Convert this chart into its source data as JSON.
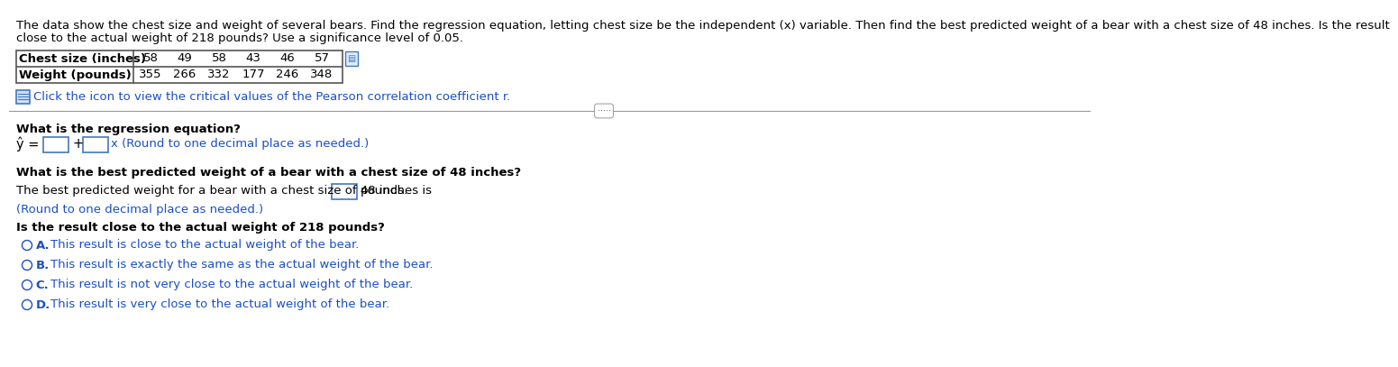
{
  "title_line1": "The data show the chest size and weight of several bears. Find the regression equation, letting chest size be the independent (x) variable. Then find the best predicted weight of a bear with a chest size of 48 inches. Is the result",
  "title_line2": "close to the actual weight of 218 pounds? Use a significance level of 0.05.",
  "table_header": [
    "Chest size (inches)",
    "Weight (pounds)"
  ],
  "chest_sizes": [
    "58",
    "49",
    "58",
    "43",
    "46",
    "57"
  ],
  "weights": [
    "355",
    "266",
    "332",
    "177",
    "246",
    "348"
  ],
  "icon_text": "Click the icon to view the critical values of the Pearson correlation coefficient r.",
  "q1": "What is the regression equation?",
  "regression_hint": "x (Round to one decimal place as needed.)",
  "q2": "What is the best predicted weight of a bear with a chest size of 48 inches?",
  "pred_text1": "The best predicted weight for a bear with a chest size of 48 inches is",
  "pred_text2": "pounds.",
  "pred_note": "(Round to one decimal place as needed.)",
  "q3": "Is the result close to the actual weight of 218 pounds?",
  "options": [
    "This result is close to the actual weight of the bear.",
    "This result is exactly the same as the actual weight of the bear.",
    "This result is not very close to the actual weight of the bear.",
    "This result is very close to the actual weight of the bear."
  ],
  "option_letters": [
    "A.",
    "B.",
    "C.",
    "D."
  ],
  "bg_color": "#ffffff",
  "text_color": "#000000",
  "blue_color": "#1a4fc4",
  "bold_blue": "#1a4fc4",
  "table_border_color": "#555555",
  "divider_color": "#999999",
  "box_border_color": "#4477bb"
}
